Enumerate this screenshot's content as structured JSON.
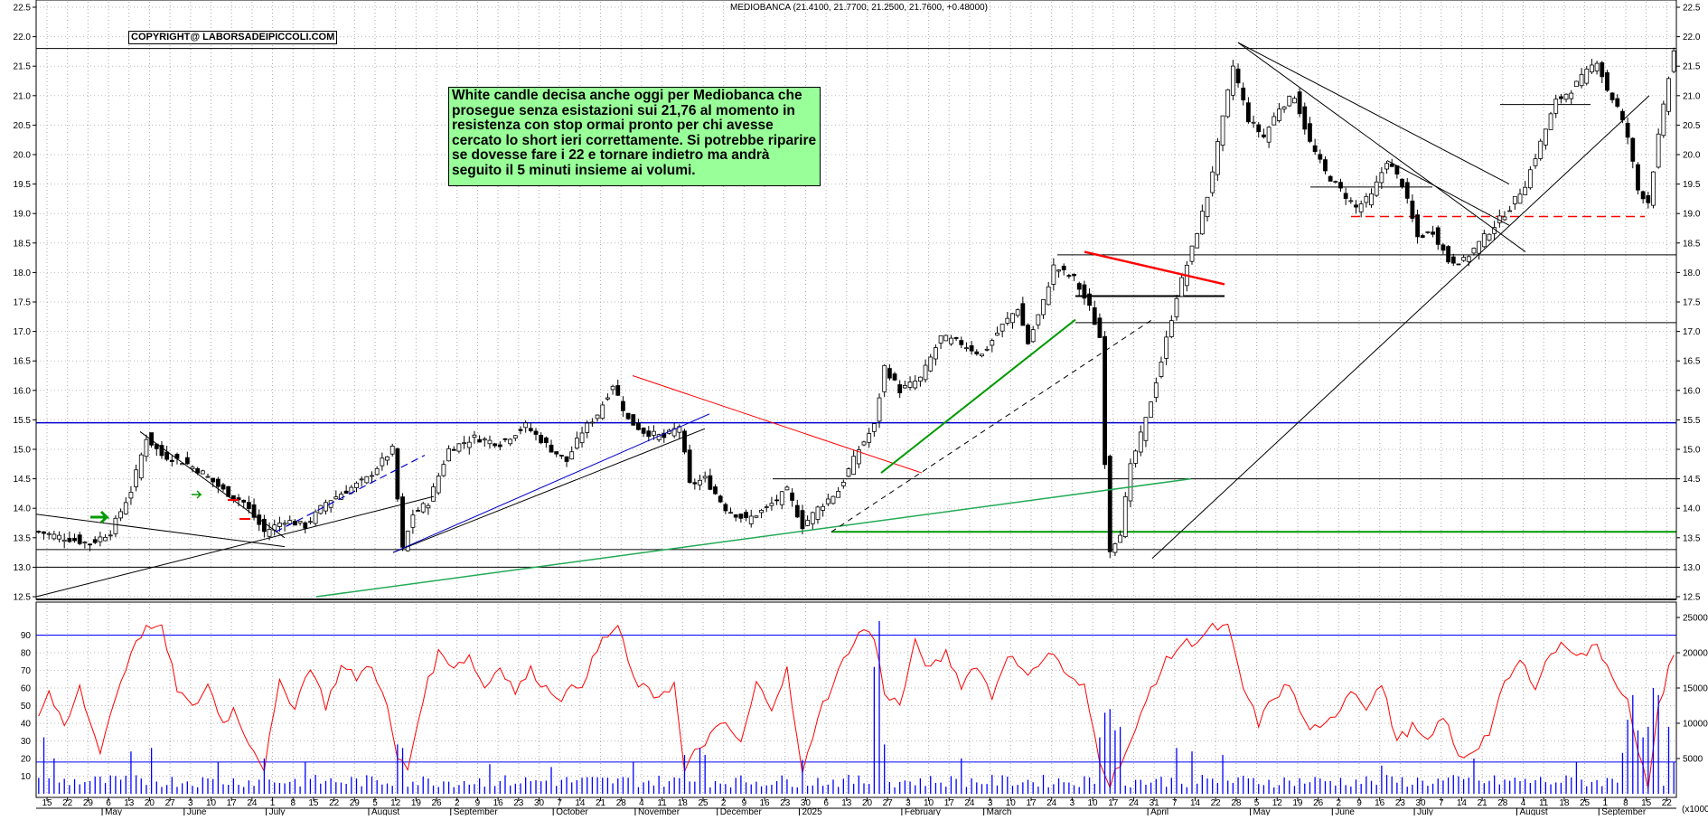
{
  "header": {
    "title": "MEDIOBANCA (21.4100, 21.7700, 21.2500, 21.7600, +0.48000)"
  },
  "copyright": "COPYRIGHT@ LABORSADEIPICCOLI.COM",
  "annotation": "White candle decisa anche oggi per Mediobanca che prosegue senza esistazioni sui 21,76 al momento in resistenza con stop ormai pronto per chi avesse cercato lo short ieri correttamente. Si potrebbe riparire se dovesse fare i 22 e tornare indietro ma andrà seguito il 5 minuti insieme ai volumi.",
  "colors": {
    "rsi": "#ff0000",
    "volume": "#0000ff",
    "support_blue": "#0000cc",
    "trend_green": "#009900",
    "trend_red": "#ff0000"
  },
  "chart_data": [
    {
      "type": "candlestick",
      "series_name": "MEDIOBANCA",
      "ylim": [
        12.5,
        22.5
      ],
      "y_ticks": [
        "12.5",
        "13.0",
        "13.5",
        "14.0",
        "14.5",
        "15.0",
        "15.5",
        "16.0",
        "16.5",
        "17.0",
        "17.5",
        "18.0",
        "18.5",
        "19.0",
        "19.5",
        "20.0",
        "20.5",
        "21.0",
        "21.5",
        "22.0",
        "22.5"
      ],
      "last_ohlc": {
        "open": 21.41,
        "high": 21.77,
        "low": 21.25,
        "close": 21.76,
        "change": 0.48
      },
      "anchors": [
        {
          "i": 0,
          "v": 13.6
        },
        {
          "i": 5,
          "v": 13.5
        },
        {
          "i": 10,
          "v": 13.4
        },
        {
          "i": 14,
          "v": 13.6
        },
        {
          "i": 18,
          "v": 14.3
        },
        {
          "i": 21,
          "v": 15.2
        },
        {
          "i": 24,
          "v": 14.9
        },
        {
          "i": 28,
          "v": 14.8
        },
        {
          "i": 32,
          "v": 14.6
        },
        {
          "i": 36,
          "v": 14.3
        },
        {
          "i": 40,
          "v": 14.1
        },
        {
          "i": 44,
          "v": 13.6
        },
        {
          "i": 48,
          "v": 13.8
        },
        {
          "i": 52,
          "v": 13.7
        },
        {
          "i": 56,
          "v": 14.1
        },
        {
          "i": 60,
          "v": 14.3
        },
        {
          "i": 64,
          "v": 14.5
        },
        {
          "i": 67,
          "v": 14.8
        },
        {
          "i": 69,
          "v": 15.0
        },
        {
          "i": 71,
          "v": 13.3
        },
        {
          "i": 73,
          "v": 13.9
        },
        {
          "i": 76,
          "v": 14.1
        },
        {
          "i": 80,
          "v": 15.0
        },
        {
          "i": 85,
          "v": 15.2
        },
        {
          "i": 90,
          "v": 15.1
        },
        {
          "i": 95,
          "v": 15.4
        },
        {
          "i": 100,
          "v": 15.0
        },
        {
          "i": 103,
          "v": 14.8
        },
        {
          "i": 106,
          "v": 15.3
        },
        {
          "i": 109,
          "v": 15.6
        },
        {
          "i": 112,
          "v": 16.1
        },
        {
          "i": 115,
          "v": 15.5
        },
        {
          "i": 118,
          "v": 15.3
        },
        {
          "i": 122,
          "v": 15.2
        },
        {
          "i": 125,
          "v": 15.4
        },
        {
          "i": 127,
          "v": 14.4
        },
        {
          "i": 130,
          "v": 14.5
        },
        {
          "i": 134,
          "v": 14.0
        },
        {
          "i": 138,
          "v": 13.8
        },
        {
          "i": 142,
          "v": 14.0
        },
        {
          "i": 146,
          "v": 14.3
        },
        {
          "i": 149,
          "v": 13.7
        },
        {
          "i": 152,
          "v": 14.0
        },
        {
          "i": 156,
          "v": 14.3
        },
        {
          "i": 160,
          "v": 15.0
        },
        {
          "i": 163,
          "v": 15.4
        },
        {
          "i": 165,
          "v": 16.4
        },
        {
          "i": 168,
          "v": 16.0
        },
        {
          "i": 172,
          "v": 16.2
        },
        {
          "i": 176,
          "v": 16.9
        },
        {
          "i": 180,
          "v": 16.8
        },
        {
          "i": 184,
          "v": 16.6
        },
        {
          "i": 188,
          "v": 17.1
        },
        {
          "i": 191,
          "v": 17.4
        },
        {
          "i": 193,
          "v": 16.8
        },
        {
          "i": 196,
          "v": 17.5
        },
        {
          "i": 198,
          "v": 18.1
        },
        {
          "i": 202,
          "v": 17.9
        },
        {
          "i": 205,
          "v": 17.4
        },
        {
          "i": 207,
          "v": 16.9
        },
        {
          "i": 208,
          "v": 14.8
        },
        {
          "i": 209,
          "v": 13.3
        },
        {
          "i": 211,
          "v": 13.6
        },
        {
          "i": 213,
          "v": 14.7
        },
        {
          "i": 216,
          "v": 15.5
        },
        {
          "i": 219,
          "v": 16.5
        },
        {
          "i": 222,
          "v": 17.6
        },
        {
          "i": 225,
          "v": 18.4
        },
        {
          "i": 228,
          "v": 19.3
        },
        {
          "i": 231,
          "v": 20.6
        },
        {
          "i": 233,
          "v": 21.5
        },
        {
          "i": 236,
          "v": 20.6
        },
        {
          "i": 239,
          "v": 20.3
        },
        {
          "i": 242,
          "v": 20.8
        },
        {
          "i": 245,
          "v": 21.0
        },
        {
          "i": 248,
          "v": 20.2
        },
        {
          "i": 251,
          "v": 19.7
        },
        {
          "i": 254,
          "v": 19.4
        },
        {
          "i": 257,
          "v": 19.1
        },
        {
          "i": 260,
          "v": 19.3
        },
        {
          "i": 263,
          "v": 19.9
        },
        {
          "i": 266,
          "v": 19.5
        },
        {
          "i": 269,
          "v": 18.6
        },
        {
          "i": 272,
          "v": 18.7
        },
        {
          "i": 275,
          "v": 18.2
        },
        {
          "i": 278,
          "v": 18.2
        },
        {
          "i": 281,
          "v": 18.5
        },
        {
          "i": 284,
          "v": 18.8
        },
        {
          "i": 287,
          "v": 19.1
        },
        {
          "i": 290,
          "v": 19.5
        },
        {
          "i": 293,
          "v": 20.2
        },
        {
          "i": 296,
          "v": 20.9
        },
        {
          "i": 299,
          "v": 21.1
        },
        {
          "i": 302,
          "v": 21.4
        },
        {
          "i": 304,
          "v": 21.6
        },
        {
          "i": 306,
          "v": 21.1
        },
        {
          "i": 308,
          "v": 20.8
        },
        {
          "i": 310,
          "v": 20.3
        },
        {
          "i": 312,
          "v": 19.4
        },
        {
          "i": 314,
          "v": 19.2
        },
        {
          "i": 316,
          "v": 20.3
        },
        {
          "i": 318,
          "v": 21.3
        },
        {
          "i": 319,
          "v": 21.76
        }
      ]
    },
    {
      "type": "line",
      "series_name": "RSI",
      "ylim": [
        0,
        100
      ],
      "y_ticks": [
        "10",
        "20",
        "30",
        "40",
        "50",
        "60",
        "70",
        "80",
        "90"
      ],
      "reference_line": 90,
      "rsi_anchors": [
        {
          "i": 0,
          "v": 45
        },
        {
          "i": 2,
          "v": 58
        },
        {
          "i": 5,
          "v": 36
        },
        {
          "i": 8,
          "v": 60
        },
        {
          "i": 10,
          "v": 40
        },
        {
          "i": 12,
          "v": 25
        },
        {
          "i": 15,
          "v": 55
        },
        {
          "i": 19,
          "v": 88
        },
        {
          "i": 22,
          "v": 96
        },
        {
          "i": 24,
          "v": 93
        },
        {
          "i": 27,
          "v": 60
        },
        {
          "i": 30,
          "v": 48
        },
        {
          "i": 33,
          "v": 62
        },
        {
          "i": 36,
          "v": 40
        },
        {
          "i": 38,
          "v": 48
        },
        {
          "i": 41,
          "v": 30
        },
        {
          "i": 44,
          "v": 15
        },
        {
          "i": 47,
          "v": 62
        },
        {
          "i": 50,
          "v": 50
        },
        {
          "i": 53,
          "v": 73
        },
        {
          "i": 56,
          "v": 50
        },
        {
          "i": 59,
          "v": 72
        },
        {
          "i": 62,
          "v": 66
        },
        {
          "i": 65,
          "v": 74
        },
        {
          "i": 68,
          "v": 48
        },
        {
          "i": 70,
          "v": 20
        },
        {
          "i": 72,
          "v": 14
        },
        {
          "i": 75,
          "v": 55
        },
        {
          "i": 78,
          "v": 80
        },
        {
          "i": 81,
          "v": 73
        },
        {
          "i": 84,
          "v": 78
        },
        {
          "i": 87,
          "v": 60
        },
        {
          "i": 90,
          "v": 73
        },
        {
          "i": 93,
          "v": 58
        },
        {
          "i": 96,
          "v": 70
        },
        {
          "i": 99,
          "v": 60
        },
        {
          "i": 102,
          "v": 55
        },
        {
          "i": 106,
          "v": 63
        },
        {
          "i": 110,
          "v": 87
        },
        {
          "i": 113,
          "v": 95
        },
        {
          "i": 116,
          "v": 65
        },
        {
          "i": 120,
          "v": 55
        },
        {
          "i": 124,
          "v": 62
        },
        {
          "i": 126,
          "v": 12
        },
        {
          "i": 128,
          "v": 23
        },
        {
          "i": 131,
          "v": 33
        },
        {
          "i": 134,
          "v": 40
        },
        {
          "i": 137,
          "v": 28
        },
        {
          "i": 140,
          "v": 62
        },
        {
          "i": 143,
          "v": 50
        },
        {
          "i": 146,
          "v": 70
        },
        {
          "i": 149,
          "v": 10
        },
        {
          "i": 152,
          "v": 45
        },
        {
          "i": 155,
          "v": 62
        },
        {
          "i": 158,
          "v": 82
        },
        {
          "i": 161,
          "v": 94
        },
        {
          "i": 163,
          "v": 88
        },
        {
          "i": 165,
          "v": 58
        },
        {
          "i": 168,
          "v": 50
        },
        {
          "i": 171,
          "v": 85
        },
        {
          "i": 174,
          "v": 70
        },
        {
          "i": 177,
          "v": 80
        },
        {
          "i": 180,
          "v": 62
        },
        {
          "i": 183,
          "v": 74
        },
        {
          "i": 186,
          "v": 55
        },
        {
          "i": 189,
          "v": 80
        },
        {
          "i": 192,
          "v": 68
        },
        {
          "i": 195,
          "v": 74
        },
        {
          "i": 198,
          "v": 80
        },
        {
          "i": 201,
          "v": 65
        },
        {
          "i": 204,
          "v": 60
        },
        {
          "i": 207,
          "v": 20
        },
        {
          "i": 209,
          "v": 6
        },
        {
          "i": 211,
          "v": 18
        },
        {
          "i": 214,
          "v": 35
        },
        {
          "i": 217,
          "v": 60
        },
        {
          "i": 220,
          "v": 75
        },
        {
          "i": 223,
          "v": 85
        },
        {
          "i": 226,
          "v": 87
        },
        {
          "i": 229,
          "v": 94
        },
        {
          "i": 232,
          "v": 94
        },
        {
          "i": 235,
          "v": 60
        },
        {
          "i": 238,
          "v": 40
        },
        {
          "i": 241,
          "v": 55
        },
        {
          "i": 244,
          "v": 62
        },
        {
          "i": 247,
          "v": 40
        },
        {
          "i": 250,
          "v": 35
        },
        {
          "i": 253,
          "v": 45
        },
        {
          "i": 256,
          "v": 60
        },
        {
          "i": 259,
          "v": 50
        },
        {
          "i": 262,
          "v": 62
        },
        {
          "i": 265,
          "v": 30
        },
        {
          "i": 268,
          "v": 38
        },
        {
          "i": 271,
          "v": 28
        },
        {
          "i": 274,
          "v": 45
        },
        {
          "i": 277,
          "v": 20
        },
        {
          "i": 280,
          "v": 25
        },
        {
          "i": 283,
          "v": 35
        },
        {
          "i": 286,
          "v": 62
        },
        {
          "i": 289,
          "v": 75
        },
        {
          "i": 292,
          "v": 62
        },
        {
          "i": 295,
          "v": 80
        },
        {
          "i": 298,
          "v": 85
        },
        {
          "i": 301,
          "v": 78
        },
        {
          "i": 304,
          "v": 84
        },
        {
          "i": 307,
          "v": 68
        },
        {
          "i": 310,
          "v": 52
        },
        {
          "i": 312,
          "v": 22
        },
        {
          "i": 314,
          "v": 5
        },
        {
          "i": 316,
          "v": 48
        },
        {
          "i": 318,
          "v": 72
        },
        {
          "i": 319,
          "v": 80
        }
      ]
    },
    {
      "type": "bar",
      "series_name": "Volume",
      "ylim": [
        0,
        25000
      ],
      "y_ticks": [
        "5000",
        "10000",
        "15000",
        "20000",
        "25000"
      ],
      "unit_label": "(x1000)",
      "volume_spikes": [
        {
          "i": 1,
          "v": 8000
        },
        {
          "i": 3,
          "v": 5000
        },
        {
          "i": 18,
          "v": 6000
        },
        {
          "i": 22,
          "v": 6500
        },
        {
          "i": 35,
          "v": 4500
        },
        {
          "i": 44,
          "v": 5000
        },
        {
          "i": 52,
          "v": 4500
        },
        {
          "i": 70,
          "v": 7000
        },
        {
          "i": 71,
          "v": 6500
        },
        {
          "i": 88,
          "v": 4200
        },
        {
          "i": 100,
          "v": 3800
        },
        {
          "i": 116,
          "v": 4500
        },
        {
          "i": 126,
          "v": 5500
        },
        {
          "i": 129,
          "v": 6500
        },
        {
          "i": 130,
          "v": 5500
        },
        {
          "i": 149,
          "v": 4800
        },
        {
          "i": 163,
          "v": 18000
        },
        {
          "i": 164,
          "v": 24500
        },
        {
          "i": 165,
          "v": 7000
        },
        {
          "i": 180,
          "v": 5000
        },
        {
          "i": 207,
          "v": 8000
        },
        {
          "i": 208,
          "v": 11500
        },
        {
          "i": 209,
          "v": 12000
        },
        {
          "i": 210,
          "v": 9000
        },
        {
          "i": 211,
          "v": 9500
        },
        {
          "i": 222,
          "v": 6500
        },
        {
          "i": 225,
          "v": 6000
        },
        {
          "i": 231,
          "v": 5500
        },
        {
          "i": 262,
          "v": 4000
        },
        {
          "i": 280,
          "v": 5000
        },
        {
          "i": 300,
          "v": 4500
        },
        {
          "i": 309,
          "v": 5800
        },
        {
          "i": 310,
          "v": 10500
        },
        {
          "i": 311,
          "v": 14000
        },
        {
          "i": 312,
          "v": 9000
        },
        {
          "i": 313,
          "v": 8000
        },
        {
          "i": 314,
          "v": 9500
        },
        {
          "i": 315,
          "v": 15000
        },
        {
          "i": 316,
          "v": 14000
        },
        {
          "i": 318,
          "v": 9500
        },
        {
          "i": 319,
          "v": 4500
        }
      ]
    }
  ],
  "date_labels": [
    "15",
    "22",
    "29",
    "6",
    "13",
    "20",
    "27",
    "3",
    "10",
    "17",
    "24",
    "1",
    "8",
    "15",
    "22",
    "29",
    "5",
    "12",
    "19",
    "26",
    "2",
    "9",
    "16",
    "23",
    "30",
    "7",
    "14",
    "21",
    "28",
    "4",
    "11",
    "18",
    "25",
    "2",
    "9",
    "16",
    "23",
    "30",
    "6",
    "13",
    "20",
    "27",
    "3",
    "10",
    "17",
    "24",
    "3",
    "10",
    "17",
    "24",
    "3",
    "10",
    "17",
    "24",
    "31",
    "7",
    "14",
    "22",
    "28",
    "5",
    "12",
    "19",
    "26",
    "2",
    "9",
    "16",
    "23",
    "30",
    "7",
    "14",
    "21",
    "28",
    "4",
    "11",
    "18",
    "25",
    "1",
    "8",
    "15",
    "22"
  ],
  "month_labels": [
    {
      "label": "May",
      "di": 3
    },
    {
      "label": "June",
      "di": 7
    },
    {
      "label": "July",
      "di": 11
    },
    {
      "label": "August",
      "di": 16
    },
    {
      "label": "September",
      "di": 20
    },
    {
      "label": "October",
      "di": 25
    },
    {
      "label": "November",
      "di": 29
    },
    {
      "label": "December",
      "di": 33
    },
    {
      "label": "2025",
      "di": 37
    },
    {
      "label": "February",
      "di": 42
    },
    {
      "label": "March",
      "di": 46
    },
    {
      "label": "April",
      "di": 54
    },
    {
      "label": "May",
      "di": 59
    },
    {
      "label": "June",
      "di": 63
    },
    {
      "label": "July",
      "di": 67
    },
    {
      "label": "August",
      "di": 72
    },
    {
      "label": "September",
      "di": 76
    }
  ]
}
